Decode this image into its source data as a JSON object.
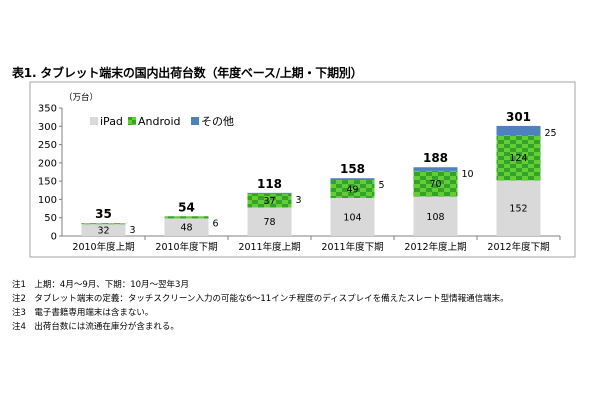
{
  "title": "表1. タブレット端末の国内出荷台数（年度ベース/上期・下期別）",
  "notes": [
    "注1　上期：4月～9月、下期：10月～翌年3月",
    "注2　タブレット端末の定義：タッチスクリーン入力の可能な6～11インチ程度のディスプレイを備えたスレート型情報通信端末。",
    "注3　電子書籍専用端末は含まない。",
    "注4　出荷台数には流通在庫分が含まれる。"
  ],
  "colors": {
    "ipad": "#d9d9d9",
    "android": "#66cc33",
    "android_dark": "#33aa22",
    "other": "#4f81bd",
    "frame": "#a6a6a6",
    "grid": "#d0d0d0"
  },
  "chart_data": {
    "type": "bar",
    "stacked": true,
    "unit_label": "（万台）",
    "ylim": [
      0,
      350
    ],
    "yticks": [
      0,
      50,
      100,
      150,
      200,
      250,
      300,
      350
    ],
    "grid": false,
    "legend_position": "top-left",
    "categories": [
      "2010年度上期",
      "2010年度下期",
      "2011年度上期",
      "2011年度下期",
      "2012年度上期",
      "2012年度下期"
    ],
    "series": [
      {
        "name": "iPad",
        "values": [
          32,
          48,
          78,
          104,
          108,
          152
        ],
        "labels": [
          "32",
          "48",
          "78",
          "104",
          "108",
          "152"
        ]
      },
      {
        "name": "Android",
        "values": [
          3,
          6,
          37,
          49,
          70,
          124
        ],
        "labels": [
          "",
          "",
          "37",
          "49",
          "70",
          "124"
        ]
      },
      {
        "name": "その他",
        "values": [
          0,
          0,
          3,
          5,
          10,
          25
        ],
        "labels": [
          "",
          "",
          "",
          "5",
          "10",
          "25"
        ]
      }
    ],
    "totals": [
      "35",
      "54",
      "118",
      "158",
      "188",
      "301"
    ],
    "side_labels": [
      "3",
      "6",
      "3",
      "5",
      "10",
      "25"
    ]
  }
}
